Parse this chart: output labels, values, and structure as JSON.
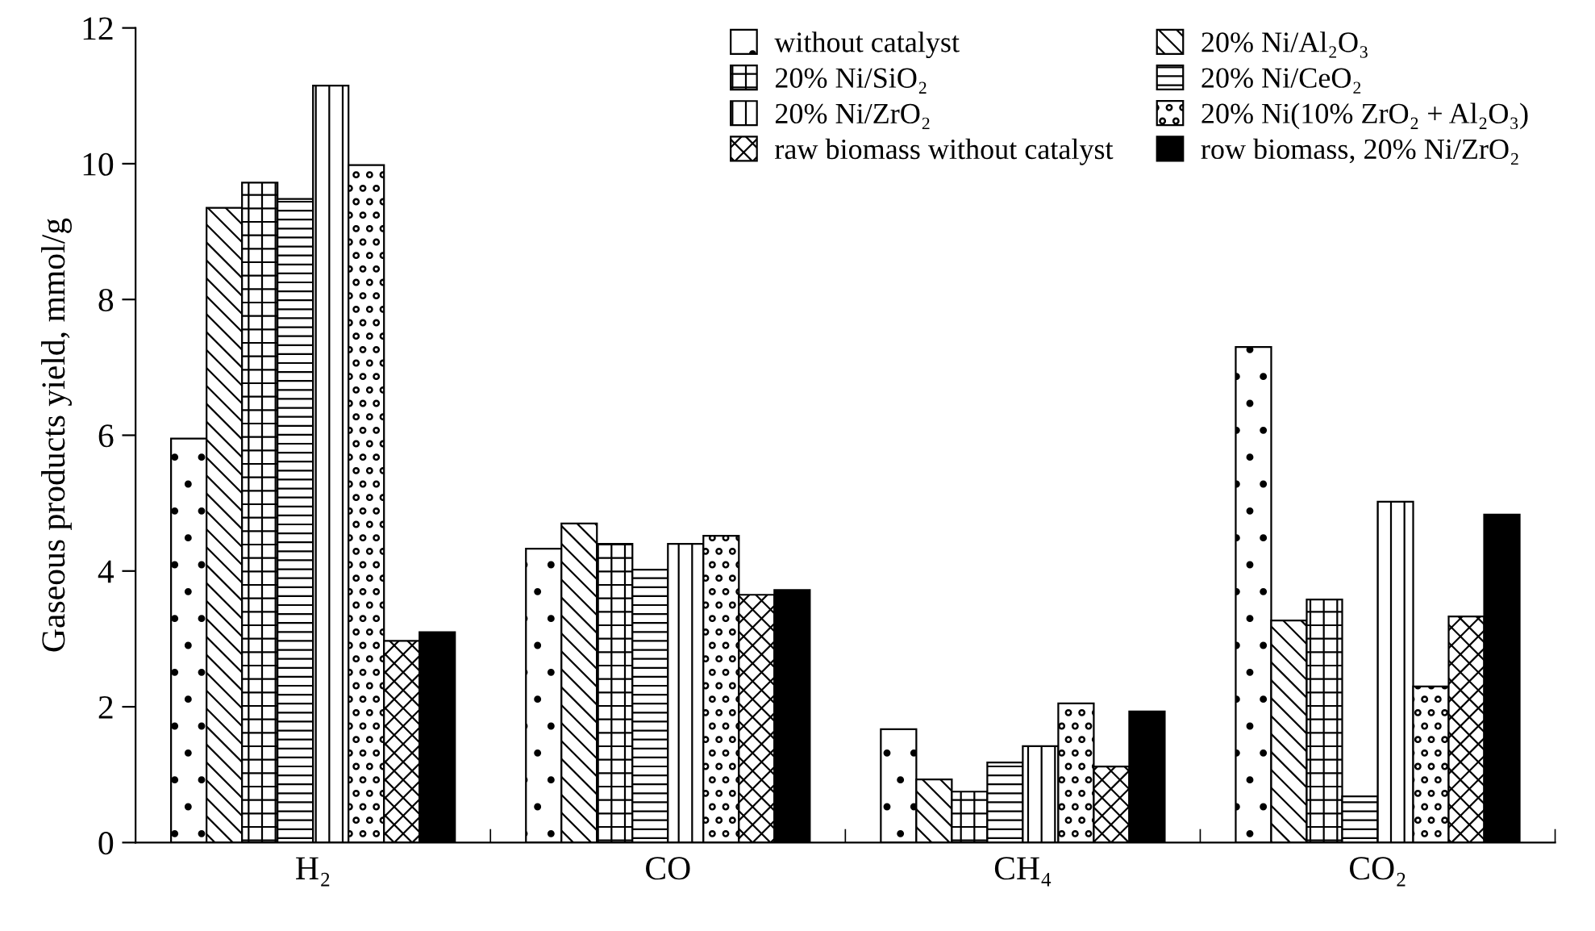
{
  "chart_data": {
    "type": "bar",
    "ylabel": "Gaseous products yield, mmol/g",
    "categories": [
      "H₂",
      "CO",
      "CH₄",
      "CO₂"
    ],
    "series": [
      {
        "name": "without catalyst",
        "color": "#000000",
        "values": [
          5.95,
          4.33,
          1.67,
          7.3
        ]
      },
      {
        "name": "20% Ni/Al₂O₃",
        "color": "#000000",
        "values": [
          9.35,
          4.7,
          0.93,
          3.27
        ]
      },
      {
        "name": "20% Ni/SiO₂",
        "color": "#000000",
        "values": [
          9.72,
          4.4,
          0.75,
          3.58
        ]
      },
      {
        "name": "20% Ni/CeO₂",
        "color": "#000000",
        "values": [
          9.48,
          4.02,
          1.18,
          0.68
        ]
      },
      {
        "name": "20% Ni/ZrO₂",
        "color": "#000000",
        "values": [
          11.15,
          4.4,
          1.42,
          5.02
        ]
      },
      {
        "name": "20% Ni(10% ZrO₂ + Al₂O₃)",
        "color": "#000000",
        "values": [
          9.98,
          4.52,
          2.05,
          2.3
        ]
      },
      {
        "name": "raw biomass without catalyst",
        "color": "#000000",
        "values": [
          2.97,
          3.65,
          1.12,
          3.33
        ]
      },
      {
        "name": "row biomass, 20% Ni/ZrO₂",
        "color": "#000000",
        "values": [
          3.1,
          3.72,
          1.93,
          4.83
        ]
      }
    ],
    "ylim": [
      0,
      12
    ],
    "yticks": [
      0,
      2,
      4,
      6,
      8,
      10,
      12
    ],
    "grid": false,
    "legend": "top right"
  }
}
